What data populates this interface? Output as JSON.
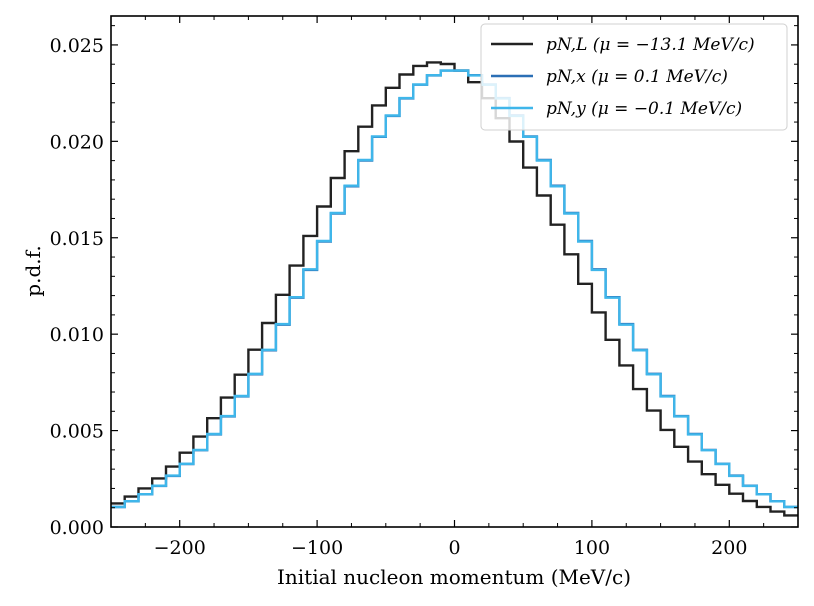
{
  "chart_data": {
    "type": "step-histogram",
    "xlabel": "Initial nucleon momentum (MeV/c)",
    "ylabel": "p.d.f.",
    "xlim": [
      -250,
      250
    ],
    "ylim": [
      0,
      0.0265
    ],
    "x_ticks": [
      -200,
      -100,
      0,
      100,
      200
    ],
    "x_tick_labels": [
      "−200",
      "−100",
      "0",
      "100",
      "200"
    ],
    "y_ticks": [
      0.0,
      0.005,
      0.01,
      0.015,
      0.02,
      0.025
    ],
    "y_tick_labels": [
      "0.000",
      "0.005",
      "0.010",
      "0.015",
      "0.020",
      "0.025"
    ],
    "legend_position": "top-right",
    "bin_width": 10,
    "series": [
      {
        "name": "p_{N,L} (μ = −13.1 MeV/c)",
        "label": "pN,L  (μ = −13.1 MeV/c)",
        "color": "#222222",
        "mu": -13.1,
        "sigma": 95,
        "peak": 0.0241
      },
      {
        "name": "p_{N,x} (μ = 0.1 MeV/c)",
        "label": "pN,x  (μ = 0.1 MeV/c)",
        "color": "#2b6fb5",
        "mu": 0.1,
        "sigma": 98,
        "peak": 0.0237
      },
      {
        "name": "p_{N,y} (μ = −0.1 MeV/c)",
        "label": "pN,y  (μ = −0.1 MeV/c)",
        "color": "#3fb6ea",
        "mu": -0.1,
        "sigma": 98,
        "peak": 0.0237
      }
    ]
  }
}
